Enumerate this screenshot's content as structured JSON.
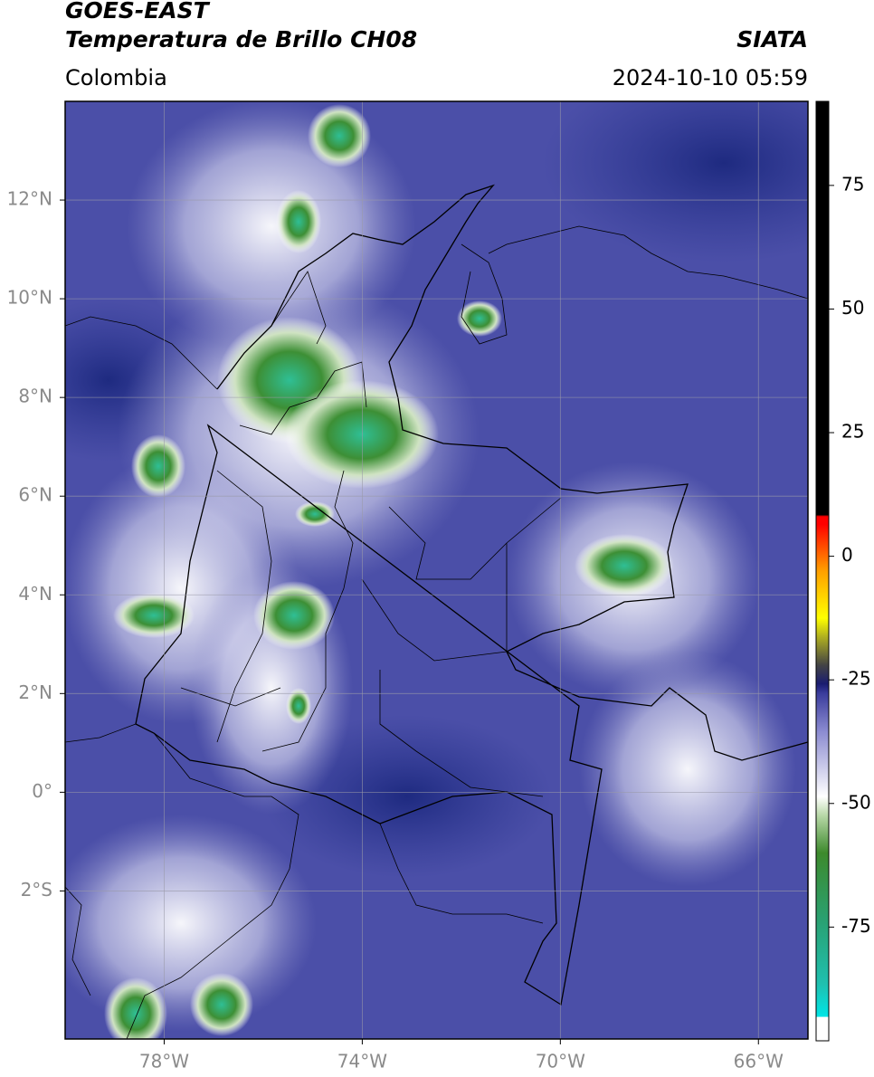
{
  "header": {
    "title": "GOES-EAST",
    "subtitle": "Temperatura de Brillo CH08",
    "source": "SIATA",
    "region": "Colombia",
    "timestamp": "2024-10-10 05:59"
  },
  "map": {
    "xlim": [
      -80,
      -65
    ],
    "ylim": [
      -5,
      14
    ],
    "xticks": [
      {
        "value": -78,
        "label": "78°W"
      },
      {
        "value": -74,
        "label": "74°W"
      },
      {
        "value": -70,
        "label": "70°W"
      },
      {
        "value": -66,
        "label": "66°W"
      }
    ],
    "yticks": [
      {
        "value": 12,
        "label": "12°N"
      },
      {
        "value": 10,
        "label": "10°N"
      },
      {
        "value": 8,
        "label": "8°N"
      },
      {
        "value": 6,
        "label": "6°N"
      },
      {
        "value": 4,
        "label": "4°N"
      },
      {
        "value": 2,
        "label": "2°N"
      },
      {
        "value": 0,
        "label": "0°"
      },
      {
        "value": -2,
        "label": "2°S"
      }
    ],
    "grid": true
  },
  "colorbar": {
    "lim": [
      -98,
      92
    ],
    "ticks": [
      75,
      50,
      25,
      0,
      -25,
      -50,
      -75
    ]
  }
}
